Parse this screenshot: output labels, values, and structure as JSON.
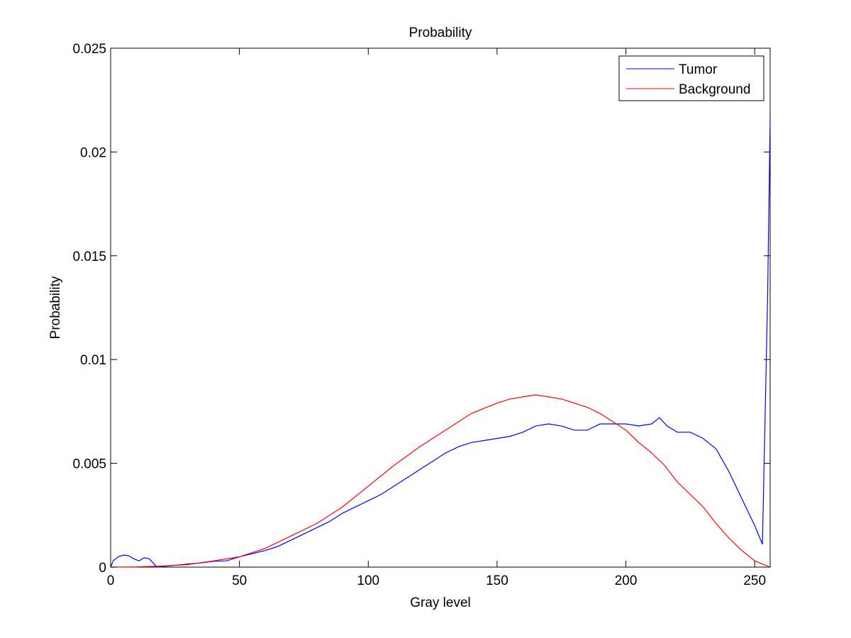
{
  "chart_data": {
    "type": "line",
    "title": "Probability",
    "xlabel": "Gray level",
    "ylabel": "Probability",
    "xlim": [
      0,
      256
    ],
    "ylim": [
      0,
      0.025
    ],
    "x_ticks": [
      0,
      50,
      100,
      150,
      200,
      250
    ],
    "y_ticks": [
      0,
      0.005,
      0.01,
      0.015,
      0.02,
      0.025
    ],
    "x_tick_labels": [
      "0",
      "50",
      "100",
      "150",
      "200",
      "250"
    ],
    "y_tick_labels": [
      "0",
      "0.005",
      "0.01",
      "0.015",
      "0.02",
      "0.025"
    ],
    "grid": false,
    "legend_position": "top-right",
    "series": [
      {
        "name": "Tumor",
        "color": "#0000ff",
        "points": [
          [
            0,
            0.0
          ],
          [
            1,
            0.0003
          ],
          [
            3,
            0.0005
          ],
          [
            5,
            0.00058
          ],
          [
            7,
            0.00055
          ],
          [
            9,
            0.0004
          ],
          [
            11,
            0.0003
          ],
          [
            13,
            0.00045
          ],
          [
            15,
            0.0004
          ],
          [
            18,
            0.0
          ],
          [
            22,
            5e-05
          ],
          [
            26,
            0.0001
          ],
          [
            30,
            0.00015
          ],
          [
            35,
            0.0002
          ],
          [
            40,
            0.00028
          ],
          [
            45,
            0.0003
          ],
          [
            50,
            0.0005
          ],
          [
            55,
            0.00065
          ],
          [
            60,
            0.0008
          ],
          [
            65,
            0.001
          ],
          [
            70,
            0.0013
          ],
          [
            75,
            0.0016
          ],
          [
            80,
            0.0019
          ],
          [
            85,
            0.0022
          ],
          [
            90,
            0.0026
          ],
          [
            95,
            0.0029
          ],
          [
            100,
            0.0032
          ],
          [
            105,
            0.0035
          ],
          [
            110,
            0.0039
          ],
          [
            115,
            0.0043
          ],
          [
            120,
            0.0047
          ],
          [
            125,
            0.0051
          ],
          [
            130,
            0.0055
          ],
          [
            135,
            0.0058
          ],
          [
            140,
            0.006
          ],
          [
            145,
            0.0061
          ],
          [
            150,
            0.0062
          ],
          [
            155,
            0.0063
          ],
          [
            160,
            0.0065
          ],
          [
            165,
            0.0068
          ],
          [
            170,
            0.0069
          ],
          [
            175,
            0.0068
          ],
          [
            180,
            0.0066
          ],
          [
            185,
            0.0066
          ],
          [
            190,
            0.0069
          ],
          [
            195,
            0.0069
          ],
          [
            200,
            0.0069
          ],
          [
            205,
            0.0068
          ],
          [
            210,
            0.0069
          ],
          [
            213,
            0.0072
          ],
          [
            216,
            0.0068
          ],
          [
            220,
            0.0065
          ],
          [
            225,
            0.0065
          ],
          [
            230,
            0.0062
          ],
          [
            235,
            0.0057
          ],
          [
            240,
            0.0046
          ],
          [
            245,
            0.0033
          ],
          [
            250,
            0.002
          ],
          [
            253,
            0.0011
          ],
          [
            255,
            0.013
          ],
          [
            256,
            0.0216
          ]
        ]
      },
      {
        "name": "Background",
        "color": "#ff0000",
        "points": [
          [
            0,
            0.0
          ],
          [
            10,
            1e-05
          ],
          [
            20,
            5e-05
          ],
          [
            30,
            0.00012
          ],
          [
            40,
            0.0003
          ],
          [
            50,
            0.0005
          ],
          [
            60,
            0.0009
          ],
          [
            70,
            0.0015
          ],
          [
            80,
            0.0021
          ],
          [
            90,
            0.0029
          ],
          [
            100,
            0.0039
          ],
          [
            110,
            0.0049
          ],
          [
            120,
            0.0058
          ],
          [
            130,
            0.0066
          ],
          [
            140,
            0.0074
          ],
          [
            150,
            0.0079
          ],
          [
            155,
            0.0081
          ],
          [
            160,
            0.0082
          ],
          [
            165,
            0.0083
          ],
          [
            170,
            0.0082
          ],
          [
            175,
            0.0081
          ],
          [
            180,
            0.0079
          ],
          [
            185,
            0.0077
          ],
          [
            190,
            0.0074
          ],
          [
            195,
            0.007
          ],
          [
            200,
            0.0066
          ],
          [
            205,
            0.006
          ],
          [
            210,
            0.0055
          ],
          [
            215,
            0.0049
          ],
          [
            220,
            0.0041
          ],
          [
            225,
            0.0035
          ],
          [
            230,
            0.0029
          ],
          [
            235,
            0.0021
          ],
          [
            240,
            0.0014
          ],
          [
            245,
            0.0008
          ],
          [
            250,
            0.0003
          ],
          [
            256,
            0.0
          ]
        ]
      }
    ]
  }
}
